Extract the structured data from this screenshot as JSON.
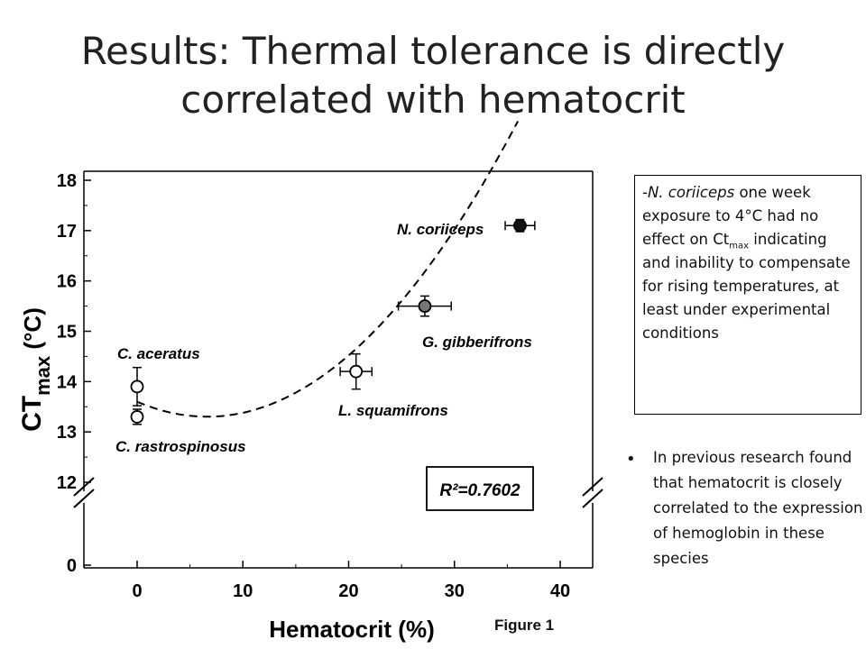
{
  "slide": {
    "title_line1": "Results: Thermal tolerance is directly",
    "title_line2": "correlated with hematocrit"
  },
  "callout": {
    "prefix": "-",
    "species": "N. coriiceps",
    "text_before_sub": " one week exposure to 4°C had no effect on Ct",
    "sub": "max",
    "text_after_sub": " indicating and inability to compensate for rising temperatures, at least under experimental conditions"
  },
  "bullets": [
    "In previous research found that hematocrit is closely correlated to the expression of hemoglobin in these species"
  ],
  "figure_label": "Figure 1",
  "chart_data": {
    "type": "scatter",
    "xlabel": "Hematocrit (%)",
    "ylabel_main": "CT",
    "ylabel_sub": "max",
    "ylabel_unit": " (°C)",
    "x_ticks": [
      0,
      10,
      20,
      30,
      40
    ],
    "xlim": [
      -5,
      42
    ],
    "y_ticks_upper": [
      12,
      13,
      14,
      15,
      16,
      17,
      18
    ],
    "y_ticks_lower": [
      0
    ],
    "ylim_upper": [
      12,
      18
    ],
    "axis_break": true,
    "annotation": "R²=0.7602",
    "points": [
      {
        "label": "C. aceratus",
        "x": 0,
        "y": 13.9,
        "y_err": 0.38,
        "x_err": 0,
        "fill": "white"
      },
      {
        "label": "C. rastrospinosus",
        "x": 0,
        "y": 13.3,
        "y_err": 0.15,
        "x_err": 0,
        "fill": "white"
      },
      {
        "label": "L. squamifrons",
        "x": 20.7,
        "y": 14.2,
        "y_err": 0.35,
        "x_err": 1.5,
        "fill": "white"
      },
      {
        "label": "G. gibberifrons",
        "x": 27.2,
        "y": 15.5,
        "y_err": 0.2,
        "x_err": 2.5,
        "fill": "#777777"
      },
      {
        "label": "N. coriiceps",
        "x": 36.2,
        "y": 17.1,
        "y_err": 0.12,
        "x_err": 1.4,
        "fill": "#111111"
      }
    ],
    "fit": {
      "style": "dashed",
      "a": 13.6,
      "b": -0.09,
      "c": 0.0068
    }
  }
}
